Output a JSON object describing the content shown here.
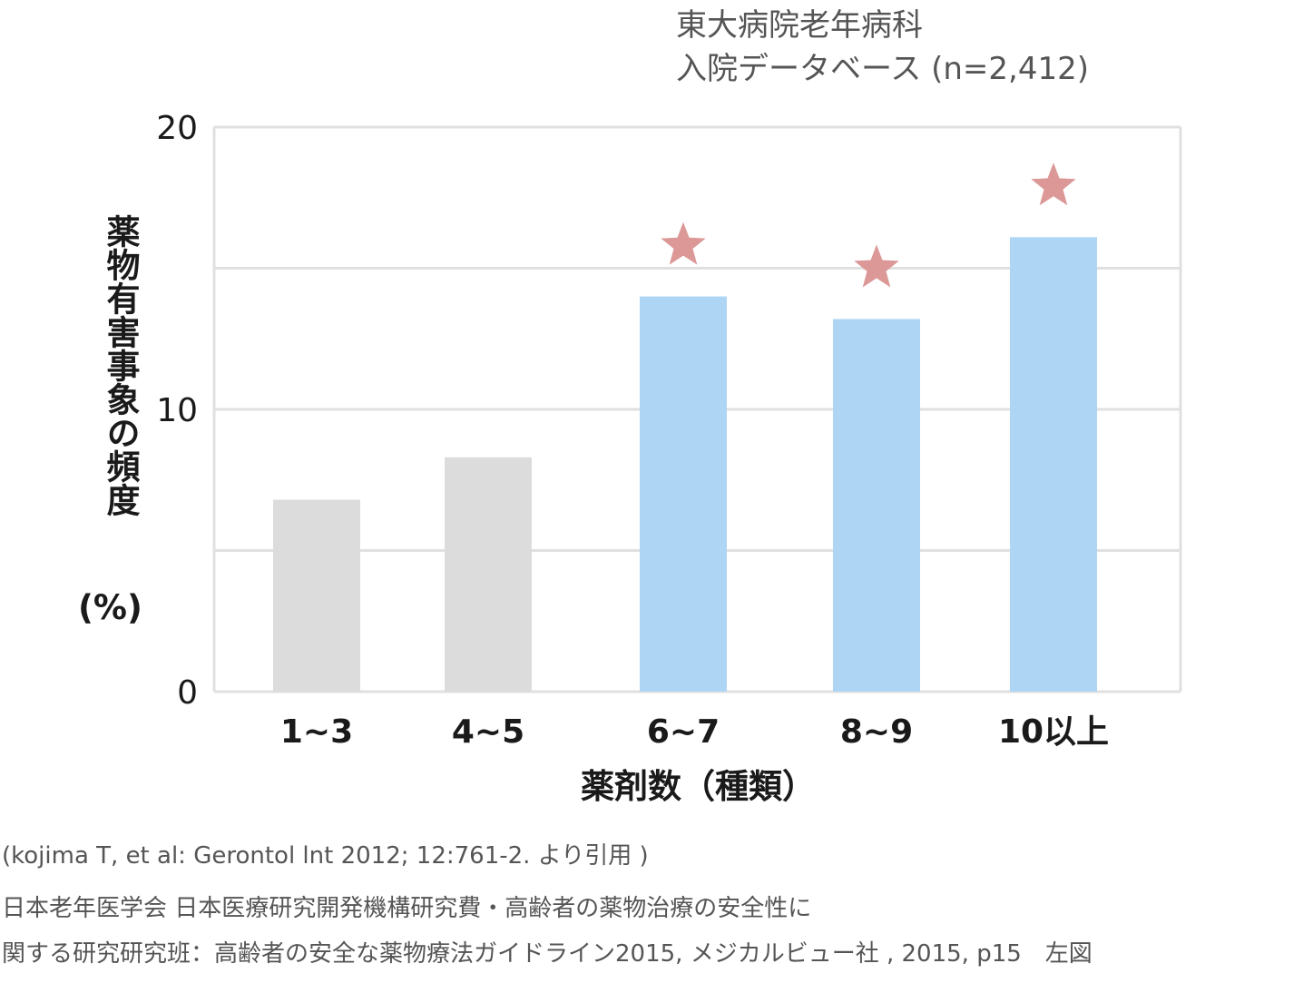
{
  "source_title": {
    "line1": "東大病院老年病科",
    "line2": "入院データベース (n=2,412)"
  },
  "chart_data": {
    "type": "bar",
    "categories": [
      "1~3",
      "4~5",
      "6~7",
      "8~9",
      "10以上"
    ],
    "values": [
      6.8,
      8.3,
      14.0,
      13.2,
      16.1
    ],
    "significant": [
      false,
      false,
      true,
      true,
      true
    ],
    "ylim": [
      0,
      20
    ],
    "yticks": [
      0,
      10,
      20
    ],
    "ylabel": "薬物有害事象の頻度",
    "ylabel_unit": "(%)",
    "xlabel": "薬剤数（種類）",
    "grid": true,
    "colors": {
      "bar_normal": "#dcdcdc",
      "bar_highlight": "#afd5f5",
      "star": "#dc9797",
      "grid": "#e0e0e0"
    }
  },
  "footnotes": {
    "citation": "(kojima T, et al: Gerontol lnt 2012; 12:761-2. より引用 )",
    "line1": "日本老年医学会 日本医療研究開発機構研究費・高齢者の薬物治療の安全性に",
    "line2": "関する研究研究班：高齢者の安全な薬物療法ガイドライン2015, メジカルビュー社 , 2015, p15　左図"
  }
}
